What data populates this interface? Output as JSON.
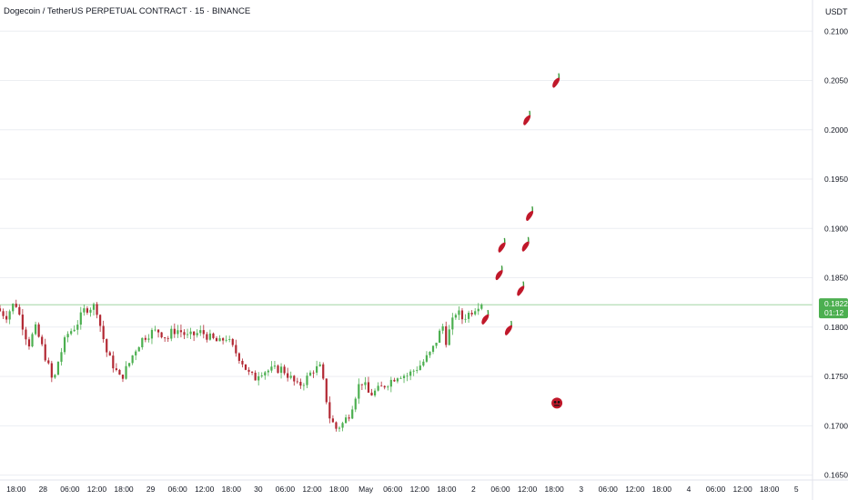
{
  "header": {
    "title": "Dogecoin / TetherUS PERPETUAL CONTRACT · 15 · BINANCE",
    "currency": "USDT"
  },
  "price_badge": {
    "price": "0.18227",
    "countdown": "01:12",
    "color": "#4caf50"
  },
  "colors": {
    "up": "#4caf50",
    "down": "#b22833",
    "grid": "#eceef2",
    "axis_text": "#131722",
    "price_line": "#4caf50",
    "chili": "#c0182a",
    "chili_stem": "#3a9a3a"
  },
  "chart_data": {
    "type": "candlestick",
    "ylim": [
      0.1645,
      0.2115
    ],
    "y_ticks": [
      "0.21000",
      "0.20500",
      "0.20000",
      "0.19500",
      "0.19000",
      "0.18500",
      "0.18000",
      "0.17500",
      "0.17000",
      "0.16500"
    ],
    "y_tick_values": [
      0.21,
      0.205,
      0.2,
      0.195,
      0.19,
      0.185,
      0.18,
      0.175,
      0.17,
      0.165
    ],
    "x_ticks": [
      "18:00",
      "28",
      "06:00",
      "12:00",
      "18:00",
      "29",
      "06:00",
      "12:00",
      "18:00",
      "30",
      "06:00",
      "12:00",
      "18:00",
      "May",
      "06:00",
      "12:00",
      "18:00",
      "2",
      "06:00",
      "12:00",
      "18:00",
      "3",
      "06:00",
      "12:00",
      "18:00",
      "4",
      "06:00",
      "12:00",
      "18:00",
      "5"
    ],
    "x_tick_hours": [
      -6,
      0,
      6,
      12,
      18,
      24,
      30,
      36,
      42,
      48,
      54,
      60,
      66,
      72,
      78,
      84,
      90,
      96,
      102,
      108,
      114,
      120,
      126,
      132,
      138,
      144,
      150,
      156,
      162,
      168
    ],
    "x_range_hours": [
      -9.6,
      171.6
    ],
    "x_origin": "Apr 28 00:00",
    "last_price": 0.18227,
    "price_path": [
      [
        -12,
        0.1828
      ],
      [
        -7.5,
        0.1811
      ],
      [
        -5.5,
        0.1826
      ],
      [
        -2.5,
        0.1782
      ],
      [
        -1,
        0.1799
      ],
      [
        0,
        0.1787
      ],
      [
        2,
        0.1759
      ],
      [
        3,
        0.1742
      ],
      [
        4,
        0.1764
      ],
      [
        6,
        0.1792
      ],
      [
        8,
        0.1801
      ],
      [
        10,
        0.1818
      ],
      [
        12.5,
        0.1822
      ],
      [
        13.5,
        0.1801
      ],
      [
        15,
        0.1773
      ],
      [
        18,
        0.1747
      ],
      [
        20,
        0.1764
      ],
      [
        21,
        0.1775
      ],
      [
        23,
        0.1789
      ],
      [
        25,
        0.1795
      ],
      [
        26.5,
        0.1796
      ],
      [
        28.5,
        0.1788
      ],
      [
        29.5,
        0.1796
      ],
      [
        31,
        0.1797
      ],
      [
        33,
        0.179
      ],
      [
        36,
        0.1795
      ],
      [
        38,
        0.1789
      ],
      [
        40,
        0.1784
      ],
      [
        41.5,
        0.179
      ],
      [
        43,
        0.1779
      ],
      [
        45,
        0.1766
      ],
      [
        46.5,
        0.1753
      ],
      [
        48,
        0.1748
      ],
      [
        49,
        0.1755
      ],
      [
        51,
        0.1756
      ],
      [
        54,
        0.1758
      ],
      [
        56,
        0.1748
      ],
      [
        57.5,
        0.174
      ],
      [
        59,
        0.1745
      ],
      [
        61,
        0.1757
      ],
      [
        62.5,
        0.1759
      ],
      [
        63.5,
        0.1738
      ],
      [
        64.5,
        0.171
      ],
      [
        66,
        0.1697
      ],
      [
        67.5,
        0.1702
      ],
      [
        69,
        0.1712
      ],
      [
        70,
        0.1725
      ],
      [
        71,
        0.174
      ],
      [
        72,
        0.1745
      ],
      [
        73.5,
        0.1731
      ],
      [
        76,
        0.1738
      ],
      [
        78,
        0.1745
      ],
      [
        80,
        0.1752
      ],
      [
        82,
        0.1751
      ],
      [
        85,
        0.1762
      ],
      [
        87,
        0.1773
      ],
      [
        88,
        0.1781
      ],
      [
        89,
        0.1793
      ],
      [
        90,
        0.1802
      ],
      [
        90.5,
        0.1785
      ],
      [
        92,
        0.1805
      ],
      [
        93,
        0.1818
      ],
      [
        94,
        0.1808
      ],
      [
        96,
        0.1815
      ],
      [
        97.8,
        0.1823
      ]
    ],
    "candle_count": 150,
    "chili_markers": [
      {
        "hour": 98.6,
        "price": 0.1809
      },
      {
        "hour": 101.7,
        "price": 0.1854
      },
      {
        "hour": 102.3,
        "price": 0.1882
      },
      {
        "hour": 103.8,
        "price": 0.1798
      },
      {
        "hour": 106.5,
        "price": 0.1838
      },
      {
        "hour": 107.6,
        "price": 0.1883
      },
      {
        "hour": 108.5,
        "price": 0.1914
      },
      {
        "hour": 107.9,
        "price": 0.2011
      },
      {
        "hour": 114.4,
        "price": 0.2049
      }
    ],
    "bomb_marker": {
      "hour": 114.6,
      "price": 0.1723
    }
  }
}
